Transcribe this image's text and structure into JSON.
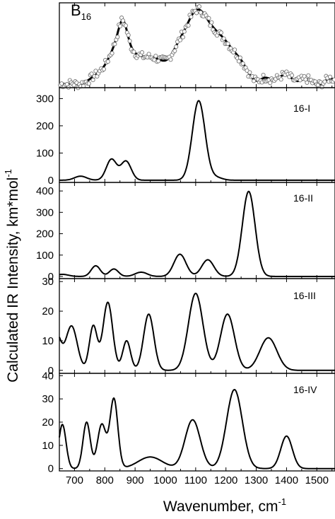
{
  "chart_data": {
    "type": "line",
    "xlabel_text": "Wavenumber, cm",
    "xlabel_sup": "-1",
    "ylabel_text": "Calculated IR Intensity, km*mol",
    "ylabel_sup": "-1",
    "xlim": [
      650,
      1560
    ],
    "x_ticks": [
      700,
      800,
      900,
      1000,
      1100,
      1200,
      1300,
      1400,
      1500
    ],
    "panels": [
      {
        "label_main": "B",
        "label_sub": "16",
        "kind": "experimental",
        "ylim": [
          0,
          1.0
        ],
        "y_ticks": [],
        "peaks": [
          [
            660,
            0.03,
            8
          ],
          [
            690,
            0.04,
            15
          ],
          [
            770,
            0.1,
            30
          ],
          [
            848,
            0.5,
            35
          ],
          [
            860,
            0.25,
            14
          ],
          [
            920,
            0.26,
            35
          ],
          [
            975,
            0.23,
            30
          ],
          [
            1040,
            0.33,
            28
          ],
          [
            1095,
            0.5,
            32
          ],
          [
            1140,
            0.55,
            45
          ],
          [
            1205,
            0.3,
            35
          ],
          [
            1255,
            0.16,
            25
          ],
          [
            1330,
            0.1,
            20
          ],
          [
            1395,
            0.14,
            25
          ],
          [
            1465,
            0.09,
            20
          ],
          [
            1545,
            0.1,
            20
          ]
        ],
        "baseline": 0.01
      },
      {
        "label": "16-I",
        "ylim": [
          -8,
          340
        ],
        "y_ticks": [
          0,
          100,
          200,
          300
        ],
        "peaks": [
          [
            720,
            15,
            20
          ],
          [
            822,
            77,
            17
          ],
          [
            870,
            70,
            17
          ],
          [
            1110,
            292,
            21
          ],
          [
            1168,
            10,
            20
          ]
        ]
      },
      {
        "label": "16-II",
        "ylim": [
          -10,
          440
        ],
        "y_ticks": [
          0,
          100,
          200,
          300,
          400
        ],
        "peaks": [
          [
            660,
            10,
            20
          ],
          [
            770,
            50,
            15
          ],
          [
            830,
            35,
            15
          ],
          [
            920,
            20,
            20
          ],
          [
            1048,
            104,
            20
          ],
          [
            1140,
            78,
            20
          ],
          [
            1275,
            398,
            21
          ]
        ]
      },
      {
        "label": "16-III",
        "ylim": [
          -1,
          31
        ],
        "y_ticks": [
          0,
          10,
          20,
          30
        ],
        "peaks": [
          [
            640,
            12,
            15
          ],
          [
            690,
            15,
            19
          ],
          [
            762,
            15,
            13
          ],
          [
            810,
            23,
            16
          ],
          [
            872,
            10,
            13
          ],
          [
            945,
            19,
            17
          ],
          [
            1100,
            26,
            24
          ],
          [
            1205,
            19,
            23
          ],
          [
            1340,
            11,
            28
          ]
        ]
      },
      {
        "label": "16-IV",
        "ylim": [
          -1,
          41
        ],
        "y_ticks": [
          0,
          10,
          20,
          30,
          40
        ],
        "peaks": [
          [
            660,
            19,
            12
          ],
          [
            740,
            20,
            12
          ],
          [
            790,
            19,
            14
          ],
          [
            830,
            30,
            13
          ],
          [
            950,
            5,
            40
          ],
          [
            1090,
            21,
            25
          ],
          [
            1228,
            34,
            26
          ],
          [
            1400,
            14,
            19
          ]
        ]
      }
    ]
  }
}
